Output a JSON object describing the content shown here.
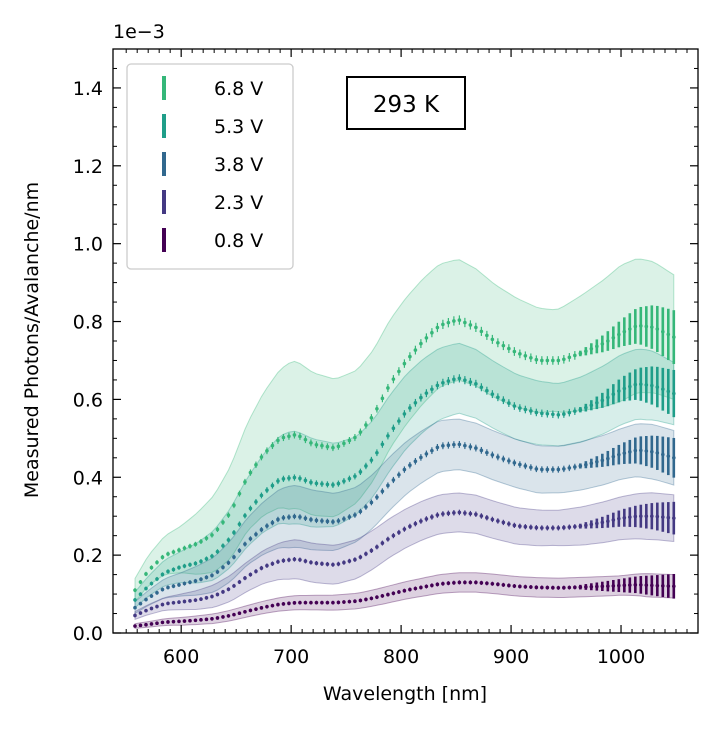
{
  "chart_data": {
    "type": "scatter",
    "title": "",
    "xlabel": "Wavelength [nm]",
    "ylabel": "Measured Photons/Avalanche/nm",
    "y_offset_label": "1e−3",
    "xlim": [
      538,
      1070
    ],
    "ylim": [
      0,
      1.5
    ],
    "x_ticks": [
      600,
      700,
      800,
      900,
      1000
    ],
    "y_ticks": [
      0.0,
      0.2,
      0.4,
      0.6,
      0.8,
      1.0,
      1.2,
      1.4
    ],
    "x_tick_labels": [
      "600",
      "700",
      "800",
      "900",
      "1000"
    ],
    "y_tick_labels": [
      "0.0",
      "0.2",
      "0.4",
      "0.6",
      "0.8",
      "1.0",
      "1.2",
      "1.4"
    ],
    "annotation": "293 K",
    "legend_position": "top-left",
    "x_range": [
      558,
      1048
    ],
    "x_step": 5,
    "series": [
      {
        "name": "6.8 V",
        "color": "#35b779",
        "knots": [
          [
            558,
            0.11
          ],
          [
            570,
            0.16
          ],
          [
            585,
            0.2
          ],
          [
            600,
            0.215
          ],
          [
            615,
            0.23
          ],
          [
            630,
            0.255
          ],
          [
            645,
            0.31
          ],
          [
            660,
            0.4
          ],
          [
            675,
            0.46
          ],
          [
            690,
            0.5
          ],
          [
            705,
            0.51
          ],
          [
            720,
            0.485
          ],
          [
            740,
            0.475
          ],
          [
            760,
            0.505
          ],
          [
            775,
            0.56
          ],
          [
            790,
            0.64
          ],
          [
            805,
            0.7
          ],
          [
            820,
            0.75
          ],
          [
            835,
            0.79
          ],
          [
            852,
            0.805
          ],
          [
            868,
            0.785
          ],
          [
            885,
            0.75
          ],
          [
            905,
            0.72
          ],
          [
            925,
            0.7
          ],
          [
            945,
            0.7
          ],
          [
            965,
            0.72
          ],
          [
            985,
            0.745
          ],
          [
            1000,
            0.77
          ],
          [
            1015,
            0.79
          ],
          [
            1030,
            0.785
          ],
          [
            1048,
            0.76
          ]
        ],
        "band_knots": [
          [
            558,
            0.03
          ],
          [
            600,
            0.06
          ],
          [
            700,
            0.19
          ],
          [
            760,
            0.17
          ],
          [
            852,
            0.155
          ],
          [
            940,
            0.13
          ],
          [
            1000,
            0.175
          ],
          [
            1025,
            0.17
          ],
          [
            1048,
            0.16
          ]
        ]
      },
      {
        "name": "5.3 V",
        "color": "#1f9e89",
        "knots": [
          [
            558,
            0.085
          ],
          [
            570,
            0.12
          ],
          [
            585,
            0.155
          ],
          [
            600,
            0.17
          ],
          [
            615,
            0.18
          ],
          [
            630,
            0.2
          ],
          [
            645,
            0.245
          ],
          [
            660,
            0.31
          ],
          [
            675,
            0.36
          ],
          [
            690,
            0.395
          ],
          [
            705,
            0.4
          ],
          [
            720,
            0.385
          ],
          [
            740,
            0.38
          ],
          [
            760,
            0.405
          ],
          [
            775,
            0.45
          ],
          [
            790,
            0.515
          ],
          [
            805,
            0.57
          ],
          [
            820,
            0.61
          ],
          [
            835,
            0.64
          ],
          [
            852,
            0.655
          ],
          [
            868,
            0.64
          ],
          [
            885,
            0.61
          ],
          [
            905,
            0.58
          ],
          [
            925,
            0.565
          ],
          [
            945,
            0.56
          ],
          [
            965,
            0.575
          ],
          [
            985,
            0.6
          ],
          [
            1000,
            0.625
          ],
          [
            1015,
            0.64
          ],
          [
            1030,
            0.635
          ],
          [
            1048,
            0.615
          ]
        ],
        "band_knots": [
          [
            558,
            0.02
          ],
          [
            600,
            0.04
          ],
          [
            700,
            0.12
          ],
          [
            760,
            0.1
          ],
          [
            852,
            0.09
          ],
          [
            940,
            0.08
          ],
          [
            1000,
            0.09
          ],
          [
            1025,
            0.09
          ],
          [
            1048,
            0.08
          ]
        ]
      },
      {
        "name": "3.8 V",
        "color": "#31688e",
        "knots": [
          [
            558,
            0.065
          ],
          [
            570,
            0.09
          ],
          [
            585,
            0.115
          ],
          [
            600,
            0.125
          ],
          [
            615,
            0.135
          ],
          [
            630,
            0.15
          ],
          [
            645,
            0.185
          ],
          [
            660,
            0.235
          ],
          [
            675,
            0.27
          ],
          [
            690,
            0.295
          ],
          [
            705,
            0.3
          ],
          [
            720,
            0.29
          ],
          [
            740,
            0.285
          ],
          [
            760,
            0.305
          ],
          [
            775,
            0.34
          ],
          [
            790,
            0.385
          ],
          [
            805,
            0.425
          ],
          [
            820,
            0.455
          ],
          [
            835,
            0.48
          ],
          [
            852,
            0.485
          ],
          [
            868,
            0.475
          ],
          [
            885,
            0.455
          ],
          [
            905,
            0.435
          ],
          [
            925,
            0.42
          ],
          [
            945,
            0.42
          ],
          [
            965,
            0.43
          ],
          [
            985,
            0.445
          ],
          [
            1000,
            0.46
          ],
          [
            1015,
            0.47
          ],
          [
            1030,
            0.465
          ],
          [
            1048,
            0.45
          ]
        ],
        "band_knots": [
          [
            558,
            0.015
          ],
          [
            600,
            0.03
          ],
          [
            700,
            0.08
          ],
          [
            760,
            0.07
          ],
          [
            852,
            0.065
          ],
          [
            940,
            0.06
          ],
          [
            1000,
            0.065
          ],
          [
            1025,
            0.07
          ],
          [
            1048,
            0.07
          ]
        ]
      },
      {
        "name": "2.3 V",
        "color": "#443983",
        "knots": [
          [
            558,
            0.045
          ],
          [
            570,
            0.06
          ],
          [
            585,
            0.075
          ],
          [
            600,
            0.08
          ],
          [
            615,
            0.085
          ],
          [
            630,
            0.095
          ],
          [
            645,
            0.115
          ],
          [
            660,
            0.145
          ],
          [
            675,
            0.17
          ],
          [
            690,
            0.185
          ],
          [
            705,
            0.19
          ],
          [
            720,
            0.18
          ],
          [
            740,
            0.175
          ],
          [
            760,
            0.19
          ],
          [
            775,
            0.215
          ],
          [
            790,
            0.245
          ],
          [
            805,
            0.27
          ],
          [
            820,
            0.29
          ],
          [
            835,
            0.305
          ],
          [
            852,
            0.31
          ],
          [
            868,
            0.305
          ],
          [
            885,
            0.29
          ],
          [
            905,
            0.275
          ],
          [
            925,
            0.27
          ],
          [
            945,
            0.27
          ],
          [
            965,
            0.275
          ],
          [
            985,
            0.285
          ],
          [
            1000,
            0.295
          ],
          [
            1015,
            0.3
          ],
          [
            1030,
            0.3
          ],
          [
            1048,
            0.295
          ]
        ],
        "band_knots": [
          [
            558,
            0.01
          ],
          [
            600,
            0.02
          ],
          [
            700,
            0.05
          ],
          [
            760,
            0.05
          ],
          [
            852,
            0.05
          ],
          [
            940,
            0.045
          ],
          [
            1000,
            0.055
          ],
          [
            1025,
            0.06
          ],
          [
            1048,
            0.06
          ]
        ]
      },
      {
        "name": "0.8 V",
        "color": "#440154",
        "knots": [
          [
            558,
            0.018
          ],
          [
            570,
            0.022
          ],
          [
            585,
            0.028
          ],
          [
            600,
            0.03
          ],
          [
            615,
            0.033
          ],
          [
            630,
            0.037
          ],
          [
            645,
            0.045
          ],
          [
            660,
            0.056
          ],
          [
            675,
            0.066
          ],
          [
            690,
            0.074
          ],
          [
            705,
            0.078
          ],
          [
            720,
            0.078
          ],
          [
            740,
            0.078
          ],
          [
            760,
            0.082
          ],
          [
            775,
            0.09
          ],
          [
            790,
            0.1
          ],
          [
            805,
            0.11
          ],
          [
            820,
            0.118
          ],
          [
            835,
            0.126
          ],
          [
            852,
            0.13
          ],
          [
            868,
            0.13
          ],
          [
            885,
            0.126
          ],
          [
            905,
            0.12
          ],
          [
            925,
            0.117
          ],
          [
            945,
            0.116
          ],
          [
            965,
            0.118
          ],
          [
            985,
            0.12
          ],
          [
            1000,
            0.122
          ],
          [
            1015,
            0.124
          ],
          [
            1030,
            0.122
          ],
          [
            1048,
            0.12
          ]
        ],
        "band_knots": [
          [
            558,
            0.006
          ],
          [
            600,
            0.01
          ],
          [
            700,
            0.018
          ],
          [
            760,
            0.02
          ],
          [
            852,
            0.025
          ],
          [
            940,
            0.025
          ],
          [
            1000,
            0.025
          ],
          [
            1025,
            0.03
          ],
          [
            1048,
            0.03
          ]
        ]
      }
    ]
  }
}
